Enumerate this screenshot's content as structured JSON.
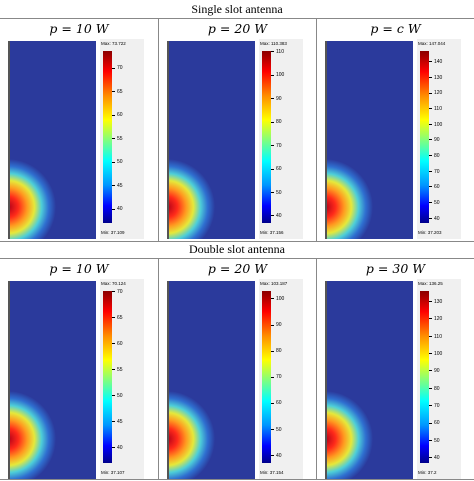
{
  "sections": [
    {
      "title": "Single slot antenna",
      "panels": [
        {
          "p": "10",
          "unit": "W",
          "max": "Max: 73.722",
          "min": "Min: 37.109",
          "ticks": [
            "70",
            "65",
            "60",
            "55",
            "50",
            "45",
            "40"
          ],
          "tmin": 37.109,
          "tmax": 73.722
        },
        {
          "p": "20",
          "unit": "W",
          "max": "Max: 110.383",
          "min": "Min: 37.156",
          "ticks": [
            "110",
            "100",
            "90",
            "80",
            "70",
            "60",
            "50",
            "40"
          ],
          "tmin": 37.156,
          "tmax": 110.383
        },
        {
          "p": "c",
          "unit": "W",
          "max": "Max: 147.044",
          "min": "Min: 37.203",
          "ticks": [
            "140",
            "130",
            "120",
            "110",
            "100",
            "90",
            "80",
            "70",
            "60",
            "50",
            "40"
          ],
          "tmin": 37.203,
          "tmax": 147.044
        }
      ]
    },
    {
      "title": "Double slot antenna",
      "panels": [
        {
          "p": "10",
          "unit": "W",
          "max": "Max: 70.124",
          "min": "Min: 37.107",
          "ticks": [
            "70",
            "65",
            "60",
            "55",
            "50",
            "45",
            "40"
          ],
          "tmin": 37.107,
          "tmax": 70.124
        },
        {
          "p": "20",
          "unit": "W",
          "max": "Max: 103.187",
          "min": "Min: 37.154",
          "ticks": [
            "100",
            "90",
            "80",
            "70",
            "60",
            "50",
            "40"
          ],
          "tmin": 37.154,
          "tmax": 103.187
        },
        {
          "p": "30",
          "unit": "W",
          "max": "Max: 136.25",
          "min": "Min: 37.2",
          "ticks": [
            "130",
            "120",
            "110",
            "100",
            "90",
            "80",
            "70",
            "60",
            "50",
            "40"
          ],
          "tmin": 37.2,
          "tmax": 136.25
        }
      ]
    }
  ],
  "colors": {
    "background_field": "#2b3a9c",
    "hot": "#d0121c"
  }
}
